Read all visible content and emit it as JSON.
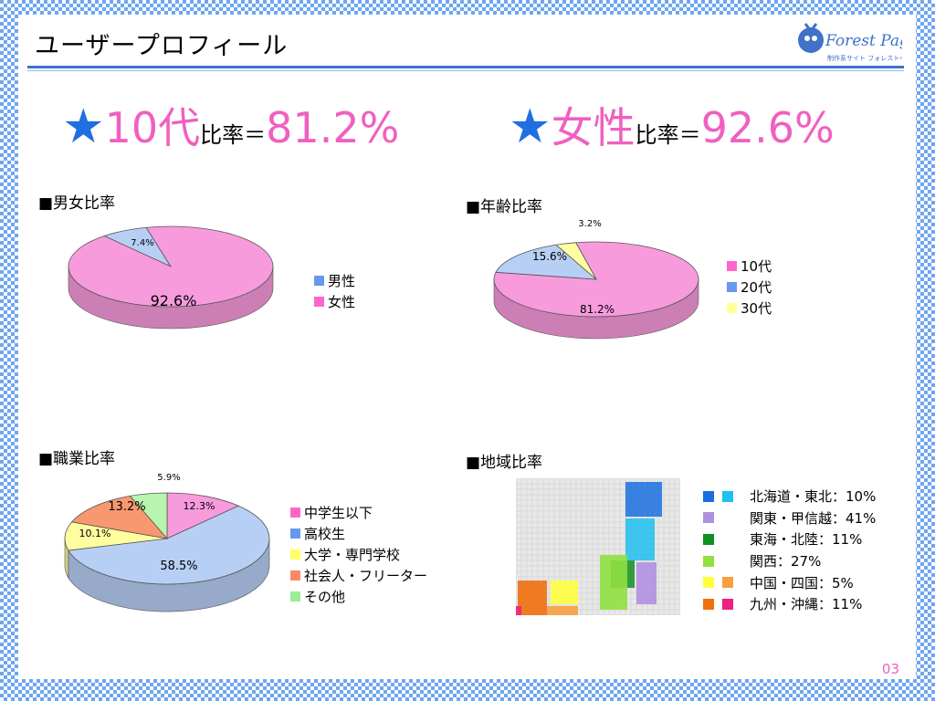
{
  "title": "ユーザープロフィール",
  "logo": {
    "name": "Forest Page",
    "sub": "制作系サイト フォレストページ"
  },
  "headlines": [
    {
      "star": "★",
      "label": "10代",
      "suffix": "比率＝",
      "value": "81.2%"
    },
    {
      "star": "★",
      "label": "女性",
      "suffix": "比率＝",
      "value": "92.6%"
    }
  ],
  "chart_data": [
    {
      "type": "pie",
      "title": "■男女比率",
      "categories": [
        "男性",
        "女性"
      ],
      "values": [
        7.4,
        92.6
      ],
      "labels": [
        "7.4%",
        "92.6%"
      ],
      "colors": [
        "#b8cff5",
        "#f79bdd"
      ],
      "legend": "right"
    },
    {
      "type": "pie",
      "title": "■年齢比率",
      "categories": [
        "10代",
        "20代",
        "30代"
      ],
      "values": [
        81.2,
        15.6,
        3.2
      ],
      "labels": [
        "81.2%",
        "15.6%",
        "3.2%"
      ],
      "colors": [
        "#f79bdd",
        "#b8cff5",
        "#ffffa0"
      ],
      "legend_colors": [
        "#ff66cc",
        "#6699ee",
        "#ffff99"
      ],
      "legend": "right"
    },
    {
      "type": "pie",
      "title": "■職業比率",
      "categories": [
        "中学生以下",
        "高校生",
        "大学・専門学校",
        "社会人・フリーター",
        "その他"
      ],
      "values": [
        12.3,
        58.5,
        10.1,
        13.2,
        5.9
      ],
      "labels": [
        "12.3%",
        "58.5%",
        "10.1%",
        "13.2%",
        "5.9%"
      ],
      "colors": [
        "#f79bdd",
        "#b8cff5",
        "#ffffa0",
        "#f89870",
        "#b8f5b0"
      ],
      "legend_colors": [
        "#ff66cc",
        "#6699ee",
        "#ffff66",
        "#ff8866",
        "#99ee99"
      ],
      "legend": "right"
    }
  ],
  "region": {
    "title": "■地域比率",
    "items": [
      {
        "label": "北海道・東北：10%",
        "c1": "#1a6fe0",
        "c2": "#20c0f0"
      },
      {
        "label": "関東・甲信越：41%",
        "c1": "#b090e0",
        "c2": ""
      },
      {
        "label": "東海・北陸：11%",
        "c1": "#109020",
        "c2": ""
      },
      {
        "label": "関西：27%",
        "c1": "#90e040",
        "c2": ""
      },
      {
        "label": "中国・四国：5%",
        "c1": "#ffff40",
        "c2": "#f8a040"
      },
      {
        "label": "九州・沖縄：11%",
        "c1": "#f07010",
        "c2": "#f02080"
      }
    ]
  },
  "page_number": "03"
}
